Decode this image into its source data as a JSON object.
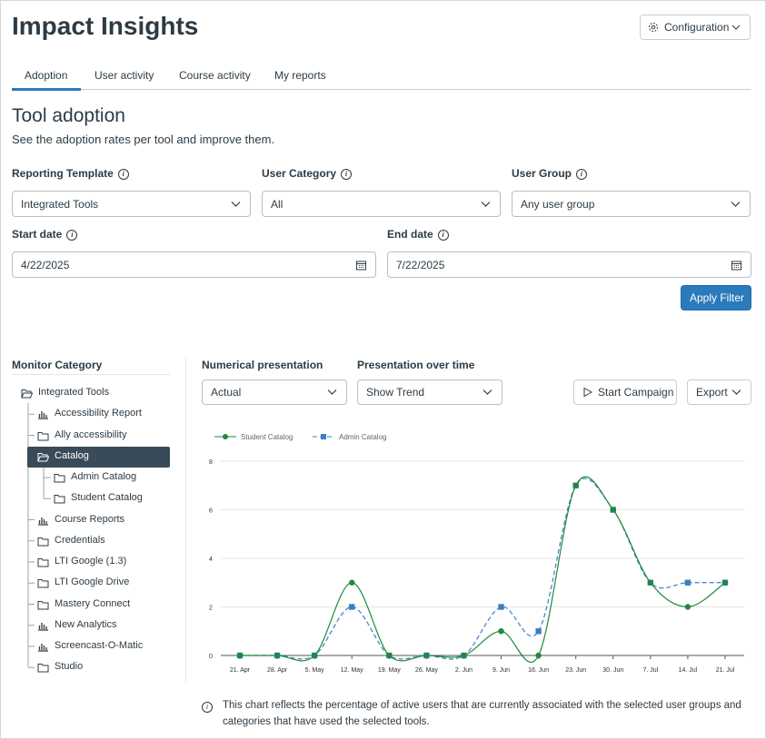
{
  "header": {
    "title": "Impact Insights",
    "config_button": "Configuration"
  },
  "tabs": [
    "Adoption",
    "User activity",
    "Course activity",
    "My reports"
  ],
  "section": {
    "title": "Tool adoption",
    "subtitle": "See the adoption rates per tool and improve them."
  },
  "filters": {
    "reporting_template": {
      "label": "Reporting Template",
      "value": "Integrated Tools"
    },
    "user_category": {
      "label": "User Category",
      "value": "All"
    },
    "user_group": {
      "label": "User Group",
      "value": "Any user group"
    },
    "start_date": {
      "label": "Start date",
      "value": "4/22/2025"
    },
    "end_date": {
      "label": "End date",
      "value": "7/22/2025"
    },
    "apply_button": "Apply Filter"
  },
  "monitor": {
    "title": "Monitor Category",
    "tree": [
      "Integrated Tools",
      "Accessibility Report",
      "Ally accessibility",
      "Catalog",
      "Admin Catalog",
      "Student Catalog",
      "Course Reports",
      "Credentials",
      "LTI Google (1.3)",
      "LTI Google Drive",
      "Mastery Connect",
      "New Analytics",
      "Screencast-O-Matic",
      "Studio"
    ]
  },
  "controls": {
    "numerical": {
      "label": "Numerical presentation",
      "value": "Actual"
    },
    "over_time": {
      "label": "Presentation over time",
      "value": "Show Trend"
    },
    "start_campaign": "Start Campaign",
    "export": "Export"
  },
  "chart_data": {
    "type": "line",
    "categories": [
      "21. Apr",
      "28. Apr",
      "5. May",
      "12. May",
      "19. May",
      "26. May",
      "2. Jun",
      "9. Jun",
      "16. Jun",
      "23. Jun",
      "30. Jun",
      "7. Jul",
      "14. Jul",
      "21. Jul"
    ],
    "series": [
      {
        "name": "Student Catalog",
        "color": "#1e8a3c",
        "values": [
          0,
          0,
          0,
          3,
          0,
          0,
          0,
          1,
          0,
          7,
          6,
          3,
          2,
          3
        ]
      },
      {
        "name": "Admin Catalog",
        "color": "#3b7fc4",
        "values": [
          0,
          0,
          0,
          2,
          0,
          0,
          0,
          2,
          1,
          7,
          6,
          3,
          3,
          3
        ]
      }
    ],
    "ylim": [
      0,
      8
    ],
    "yticks": [
      0,
      2,
      4,
      6,
      8
    ],
    "grid": true,
    "legend": "top-left"
  },
  "footnote": "This chart reflects the percentage of active users that are currently associated with the selected user groups and categories that have used the selected tools."
}
